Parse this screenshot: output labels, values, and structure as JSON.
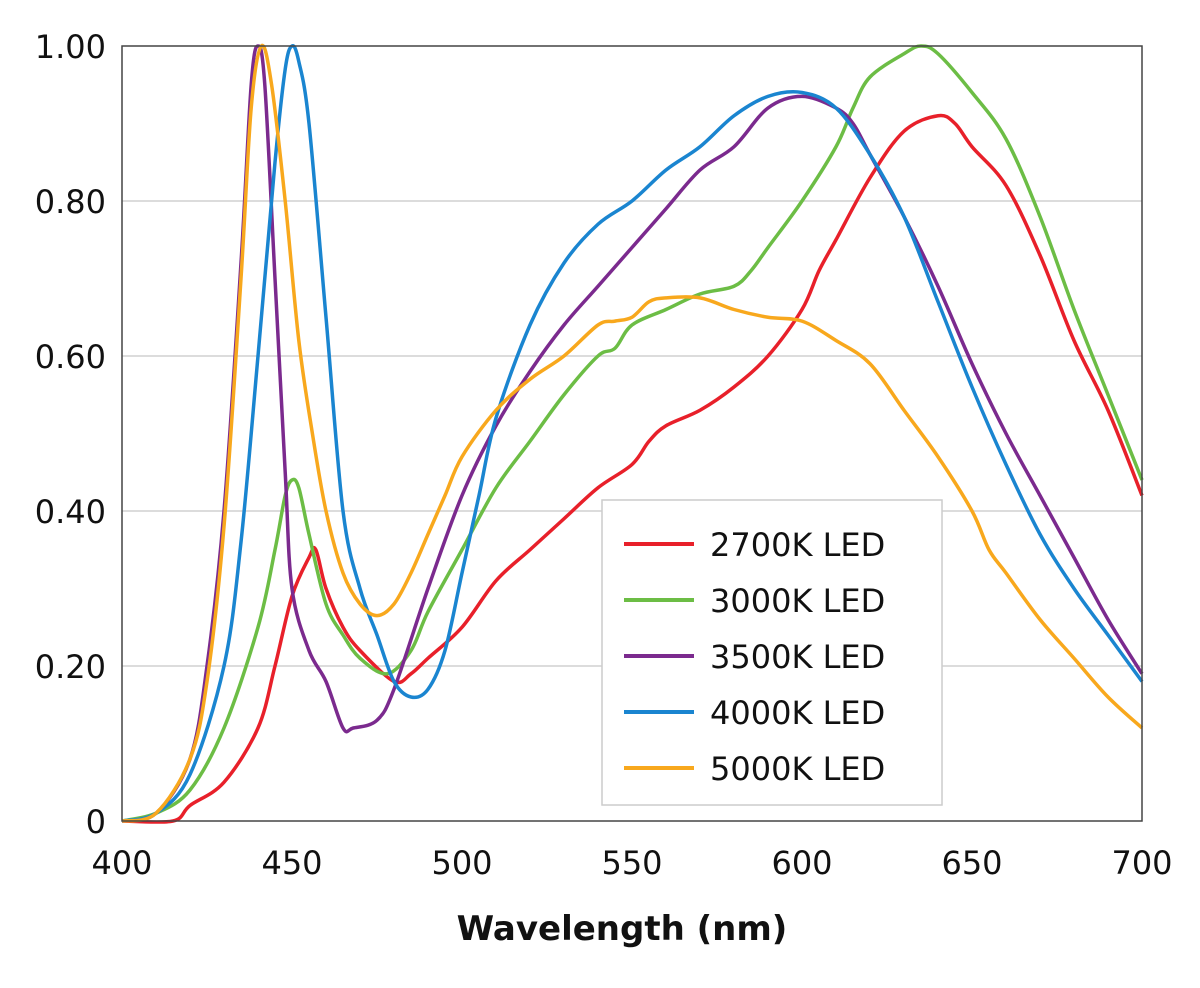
{
  "chart_data": {
    "type": "line",
    "title": "",
    "xlabel": "Wavelength (nm)",
    "ylabel": "",
    "xlim": [
      400,
      700
    ],
    "ylim": [
      0,
      1.0
    ],
    "xticks": [
      400,
      450,
      500,
      550,
      600,
      650,
      700
    ],
    "xtick_labels": [
      "400",
      "450",
      "500",
      "550",
      "600",
      "650",
      "700"
    ],
    "yticks": [
      0,
      0.2,
      0.4,
      0.6,
      0.8,
      1.0
    ],
    "ytick_labels": [
      "0",
      "0.20",
      "0.40",
      "0.60",
      "0.80",
      "1.00"
    ],
    "grid": "horizontal",
    "legend_position": "bottom-right",
    "series": [
      {
        "name": "2700K LED",
        "color": "#e8202a",
        "x": [
          400,
          415,
          420,
          430,
          440,
          445,
          450,
          455,
          457,
          460,
          465,
          470,
          480,
          485,
          490,
          500,
          510,
          520,
          530,
          540,
          550,
          555,
          560,
          570,
          580,
          590,
          600,
          605,
          610,
          620,
          630,
          640,
          645,
          650,
          660,
          670,
          680,
          690,
          700
        ],
        "y": [
          0,
          0,
          0.02,
          0.05,
          0.12,
          0.2,
          0.29,
          0.34,
          0.35,
          0.3,
          0.25,
          0.22,
          0.18,
          0.19,
          0.21,
          0.25,
          0.31,
          0.35,
          0.39,
          0.43,
          0.46,
          0.49,
          0.51,
          0.53,
          0.56,
          0.6,
          0.66,
          0.71,
          0.75,
          0.83,
          0.89,
          0.91,
          0.9,
          0.87,
          0.82,
          0.73,
          0.62,
          0.53,
          0.42
        ]
      },
      {
        "name": "3000K LED",
        "color": "#6cbd45",
        "x": [
          400,
          410,
          420,
          430,
          440,
          445,
          448,
          450,
          452,
          455,
          460,
          465,
          470,
          478,
          485,
          490,
          500,
          510,
          520,
          530,
          540,
          545,
          550,
          560,
          570,
          580,
          585,
          590,
          600,
          610,
          615,
          620,
          630,
          635,
          640,
          650,
          660,
          670,
          680,
          690,
          700
        ],
        "y": [
          0,
          0.01,
          0.04,
          0.12,
          0.25,
          0.35,
          0.42,
          0.44,
          0.43,
          0.37,
          0.28,
          0.24,
          0.21,
          0.19,
          0.22,
          0.27,
          0.35,
          0.43,
          0.49,
          0.55,
          0.6,
          0.61,
          0.64,
          0.66,
          0.68,
          0.69,
          0.71,
          0.74,
          0.8,
          0.87,
          0.92,
          0.96,
          0.99,
          1.0,
          0.99,
          0.94,
          0.88,
          0.78,
          0.66,
          0.55,
          0.44
        ]
      },
      {
        "name": "3500K LED",
        "color": "#7b2a8e",
        "x": [
          400,
          410,
          420,
          425,
          430,
          435,
          438,
          440,
          442,
          445,
          448,
          450,
          455,
          460,
          465,
          468,
          475,
          480,
          490,
          500,
          510,
          520,
          530,
          540,
          550,
          560,
          570,
          580,
          590,
          600,
          610,
          615,
          620,
          630,
          640,
          650,
          660,
          670,
          680,
          690,
          700
        ],
        "y": [
          0,
          0.01,
          0.08,
          0.2,
          0.4,
          0.72,
          0.95,
          1.0,
          0.95,
          0.7,
          0.45,
          0.3,
          0.22,
          0.18,
          0.12,
          0.12,
          0.13,
          0.17,
          0.3,
          0.42,
          0.51,
          0.58,
          0.64,
          0.69,
          0.74,
          0.79,
          0.84,
          0.87,
          0.92,
          0.935,
          0.92,
          0.9,
          0.86,
          0.78,
          0.69,
          0.59,
          0.5,
          0.42,
          0.34,
          0.26,
          0.19
        ]
      },
      {
        "name": "4000K LED",
        "color": "#1a85d0",
        "x": [
          400,
          410,
          420,
          430,
          435,
          440,
          445,
          448,
          450,
          452,
          455,
          460,
          465,
          470,
          475,
          480,
          485,
          490,
          495,
          500,
          505,
          510,
          520,
          530,
          540,
          550,
          560,
          570,
          580,
          590,
          600,
          610,
          620,
          630,
          640,
          650,
          660,
          670,
          680,
          690,
          700
        ],
        "y": [
          0,
          0.01,
          0.06,
          0.2,
          0.36,
          0.6,
          0.85,
          0.97,
          1.0,
          0.98,
          0.9,
          0.65,
          0.4,
          0.3,
          0.24,
          0.18,
          0.16,
          0.17,
          0.22,
          0.32,
          0.42,
          0.52,
          0.64,
          0.72,
          0.77,
          0.8,
          0.84,
          0.87,
          0.91,
          0.935,
          0.94,
          0.92,
          0.86,
          0.78,
          0.67,
          0.56,
          0.46,
          0.37,
          0.3,
          0.24,
          0.18
        ]
      },
      {
        "name": "5000K LED",
        "color": "#f8a81d",
        "x": [
          400,
          410,
          420,
          425,
          430,
          435,
          438,
          441,
          444,
          448,
          452,
          456,
          460,
          465,
          470,
          475,
          480,
          485,
          490,
          495,
          500,
          510,
          520,
          530,
          540,
          545,
          550,
          555,
          560,
          570,
          580,
          590,
          600,
          610,
          620,
          630,
          640,
          650,
          655,
          660,
          670,
          680,
          690,
          700
        ],
        "y": [
          0,
          0.01,
          0.08,
          0.18,
          0.38,
          0.7,
          0.92,
          1.0,
          0.95,
          0.8,
          0.62,
          0.5,
          0.4,
          0.32,
          0.28,
          0.265,
          0.28,
          0.32,
          0.37,
          0.42,
          0.47,
          0.53,
          0.57,
          0.6,
          0.64,
          0.645,
          0.65,
          0.67,
          0.675,
          0.675,
          0.66,
          0.65,
          0.645,
          0.62,
          0.59,
          0.53,
          0.47,
          0.4,
          0.35,
          0.32,
          0.26,
          0.21,
          0.16,
          0.12
        ]
      }
    ]
  }
}
